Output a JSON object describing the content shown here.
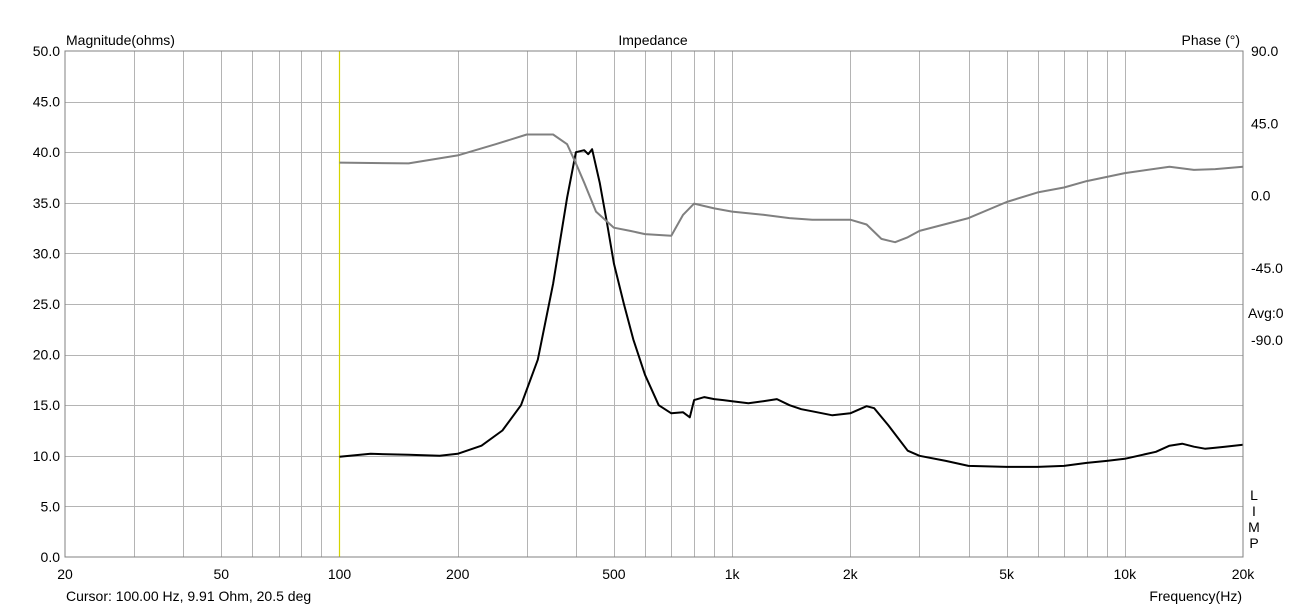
{
  "chart_data": {
    "type": "line",
    "title": "Impedance",
    "left_axis_label": "Magnitude(ohms)",
    "right_axis_label": "Phase (°)",
    "x_axis_label": "Frequency(Hz)",
    "x_scale": "log",
    "xlim": [
      20,
      20000
    ],
    "ylim": [
      0,
      50
    ],
    "phase_lim": [
      -225,
      90
    ],
    "grid": true,
    "y_ticks": [
      "50.0",
      "45.0",
      "40.0",
      "35.0",
      "30.0",
      "25.0",
      "20.0",
      "15.0",
      "10.0",
      "5.0",
      "0.0"
    ],
    "phase_ticks": [
      {
        "value": 90,
        "label": "90.0"
      },
      {
        "value": 45,
        "label": "45.0"
      },
      {
        "value": 0,
        "label": "0.0"
      },
      {
        "value": -45,
        "label": "-45.0"
      },
      {
        "value": -90,
        "label": "-90.0"
      }
    ],
    "x_ticks": [
      {
        "value": 20,
        "label": "20"
      },
      {
        "value": 50,
        "label": "50"
      },
      {
        "value": 100,
        "label": "100"
      },
      {
        "value": 200,
        "label": "200"
      },
      {
        "value": 500,
        "label": "500"
      },
      {
        "value": 1000,
        "label": "1k"
      },
      {
        "value": 2000,
        "label": "2k"
      },
      {
        "value": 5000,
        "label": "5k"
      },
      {
        "value": 10000,
        "label": "10k"
      },
      {
        "value": 20000,
        "label": "20k"
      }
    ],
    "cursor_frequency": 100,
    "cursor_text": "Cursor: 100.00 Hz, 9.91 Ohm, 20.5 deg",
    "avg_label": "Avg:0",
    "limp_label": [
      "L",
      "I",
      "M",
      "P"
    ],
    "colors": {
      "magnitude": "#000000",
      "phase": "#808080",
      "cursor": "#d4d400",
      "grid": "#b4b4b4"
    },
    "series": [
      {
        "axis": "magnitude",
        "x": [
          100,
          120,
          150,
          180,
          200,
          230,
          260,
          290,
          320,
          350,
          380,
          400,
          420,
          430,
          440,
          460,
          480,
          500,
          530,
          560,
          600,
          650,
          700,
          750,
          780,
          800,
          850,
          900,
          950,
          1000,
          1100,
          1200,
          1300,
          1400,
          1500,
          1600,
          1800,
          2000,
          2200,
          2300,
          2500,
          2800,
          3000,
          3500,
          4000,
          5000,
          6000,
          7000,
          8000,
          9000,
          10000,
          12000,
          13000,
          14000,
          15000,
          16000,
          17000,
          18000,
          20000
        ],
        "y": [
          9.9,
          10.2,
          10.1,
          10.0,
          10.2,
          11.0,
          12.5,
          15.0,
          19.5,
          27.0,
          35.5,
          40.0,
          40.2,
          39.8,
          40.3,
          37.0,
          33.0,
          29.0,
          25.0,
          21.5,
          18.0,
          15.0,
          14.2,
          14.3,
          13.8,
          15.5,
          15.8,
          15.6,
          15.5,
          15.4,
          15.2,
          15.4,
          15.6,
          15.0,
          14.6,
          14.4,
          14.0,
          14.2,
          14.9,
          14.7,
          13.0,
          10.5,
          10.0,
          9.5,
          9.0,
          8.9,
          8.9,
          9.0,
          9.3,
          9.5,
          9.7,
          10.4,
          11.0,
          11.2,
          10.9,
          10.7,
          10.8,
          10.9,
          11.1
        ]
      },
      {
        "axis": "phase",
        "x": [
          100,
          150,
          200,
          250,
          300,
          350,
          380,
          400,
          420,
          450,
          500,
          550,
          600,
          700,
          750,
          800,
          900,
          1000,
          1200,
          1400,
          1600,
          2000,
          2200,
          2400,
          2600,
          2800,
          3000,
          4000,
          5000,
          6000,
          7000,
          8000,
          10000,
          13000,
          15000,
          17000,
          20000
        ],
        "y": [
          20.5,
          20.0,
          25.0,
          32.0,
          38.0,
          38.0,
          32.0,
          20.0,
          8.0,
          -10.0,
          -20.0,
          -22.0,
          -24.0,
          -25.0,
          -12.0,
          -5.0,
          -8.0,
          -10.0,
          -12.0,
          -14.0,
          -15.0,
          -15.0,
          -18.0,
          -27.0,
          -29.0,
          -26.0,
          -22.0,
          -14.0,
          -4.0,
          2.0,
          5.0,
          9.0,
          14.0,
          18.0,
          16.0,
          16.5,
          18.0
        ]
      }
    ]
  }
}
